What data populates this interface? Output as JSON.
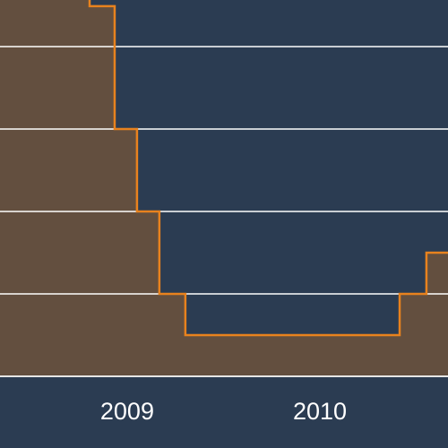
{
  "chart_data": {
    "type": "step-area",
    "x": [
      2008.34,
      2008.805,
      2008.935,
      2009.051,
      2009.167,
      2009.302,
      2010.414,
      2010.553
    ],
    "values": [
      4.8,
      4.49,
      3.0,
      2.0,
      1.0,
      0.5,
      1.0,
      1.5
    ],
    "xlim": [
      2008.34,
      2010.665
    ],
    "ylim": [
      0,
      4.565
    ],
    "xticks": [
      2009,
      2010
    ],
    "yticks": [
      1,
      2,
      3,
      4
    ],
    "grid": true,
    "color": "#e8821e",
    "fill_color": "#634f3f"
  }
}
